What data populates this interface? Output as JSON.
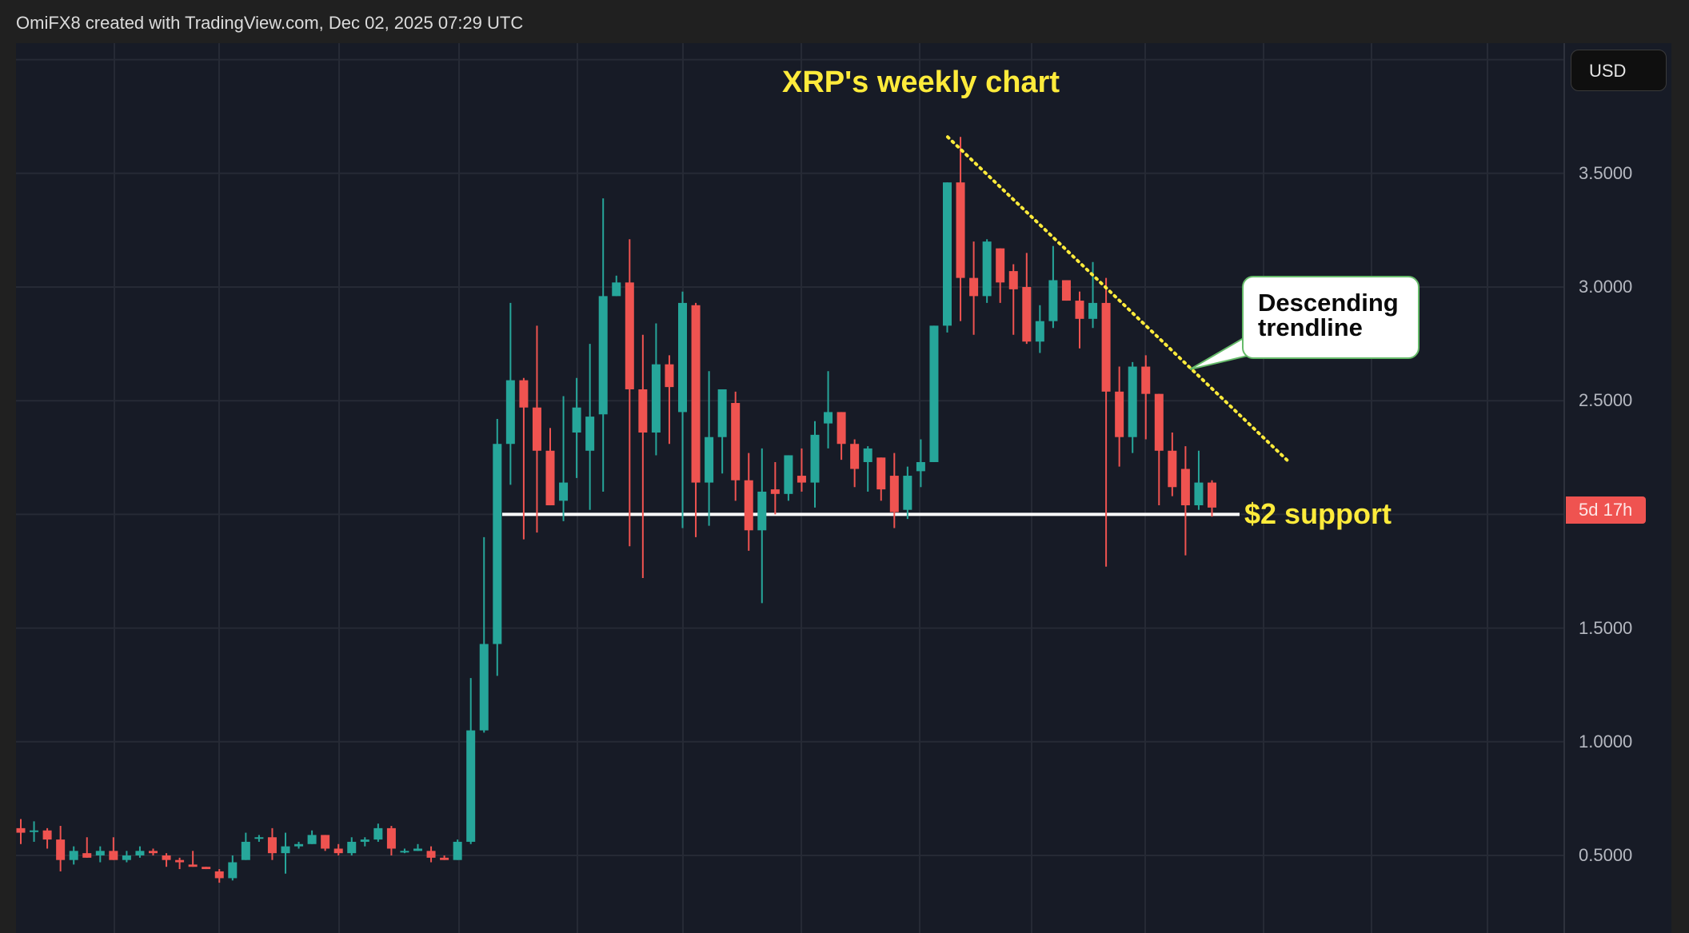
{
  "header": {
    "credit": "OmiFX8 created with TradingView.com, Dec 02, 2025 07:29 UTC"
  },
  "toolbar": {
    "currency_label": "USD"
  },
  "price_axis": {
    "ticks": [
      {
        "label": "3.5000",
        "value": 3.5
      },
      {
        "label": "3.0000",
        "value": 3.0
      },
      {
        "label": "2.5000",
        "value": 2.5
      },
      {
        "label": "1.5000",
        "value": 1.5
      },
      {
        "label": "1.0000",
        "value": 1.0
      },
      {
        "label": "0.5000",
        "value": 0.5
      }
    ],
    "countdown_label": "5d 17h"
  },
  "annotations": {
    "title": "XRP's weekly chart",
    "support_label": "$2 support",
    "trendline_label": "Descending trendline"
  },
  "colors": {
    "up": "#26a69a",
    "down": "#ef5350",
    "background": "#171b26",
    "grid": "#262a35",
    "annotation_yellow": "#ffeb3b",
    "bubble_border": "#66bb6a",
    "support_line": "#ffffff"
  },
  "chart_data": {
    "type": "candlestick",
    "title": "XRP's weekly chart",
    "xlabel": "",
    "ylabel": "USD",
    "ylim": [
      0.3,
      4.0
    ],
    "yticks": [
      0.5,
      1.0,
      1.5,
      2.0,
      2.5,
      3.0,
      3.5
    ],
    "grid": true,
    "interval": "1W",
    "support_level": 2.0,
    "trendline": {
      "style": "dotted",
      "color": "#ffeb3b",
      "from_price": 3.66,
      "to_price": 2.23
    },
    "candles": [
      {
        "o": 0.62,
        "h": 0.66,
        "l": 0.55,
        "c": 0.6
      },
      {
        "o": 0.61,
        "h": 0.65,
        "l": 0.56,
        "c": 0.61
      },
      {
        "o": 0.61,
        "h": 0.62,
        "l": 0.53,
        "c": 0.57
      },
      {
        "o": 0.57,
        "h": 0.63,
        "l": 0.43,
        "c": 0.48
      },
      {
        "o": 0.48,
        "h": 0.54,
        "l": 0.46,
        "c": 0.52
      },
      {
        "o": 0.51,
        "h": 0.58,
        "l": 0.5,
        "c": 0.49
      },
      {
        "o": 0.5,
        "h": 0.54,
        "l": 0.47,
        "c": 0.52
      },
      {
        "o": 0.52,
        "h": 0.58,
        "l": 0.48,
        "c": 0.48
      },
      {
        "o": 0.48,
        "h": 0.52,
        "l": 0.47,
        "c": 0.5
      },
      {
        "o": 0.5,
        "h": 0.54,
        "l": 0.49,
        "c": 0.52
      },
      {
        "o": 0.52,
        "h": 0.53,
        "l": 0.5,
        "c": 0.51
      },
      {
        "o": 0.5,
        "h": 0.51,
        "l": 0.45,
        "c": 0.48
      },
      {
        "o": 0.48,
        "h": 0.49,
        "l": 0.44,
        "c": 0.47
      },
      {
        "o": 0.46,
        "h": 0.52,
        "l": 0.45,
        "c": 0.45
      },
      {
        "o": 0.45,
        "h": 0.45,
        "l": 0.44,
        "c": 0.44
      },
      {
        "o": 0.43,
        "h": 0.44,
        "l": 0.38,
        "c": 0.4
      },
      {
        "o": 0.4,
        "h": 0.5,
        "l": 0.39,
        "c": 0.47
      },
      {
        "o": 0.48,
        "h": 0.6,
        "l": 0.48,
        "c": 0.56
      },
      {
        "o": 0.58,
        "h": 0.59,
        "l": 0.56,
        "c": 0.58
      },
      {
        "o": 0.58,
        "h": 0.62,
        "l": 0.48,
        "c": 0.51
      },
      {
        "o": 0.51,
        "h": 0.6,
        "l": 0.42,
        "c": 0.54
      },
      {
        "o": 0.54,
        "h": 0.56,
        "l": 0.53,
        "c": 0.55
      },
      {
        "o": 0.55,
        "h": 0.61,
        "l": 0.55,
        "c": 0.59
      },
      {
        "o": 0.59,
        "h": 0.59,
        "l": 0.52,
        "c": 0.53
      },
      {
        "o": 0.53,
        "h": 0.55,
        "l": 0.5,
        "c": 0.51
      },
      {
        "o": 0.51,
        "h": 0.58,
        "l": 0.5,
        "c": 0.56
      },
      {
        "o": 0.56,
        "h": 0.58,
        "l": 0.54,
        "c": 0.57
      },
      {
        "o": 0.57,
        "h": 0.64,
        "l": 0.56,
        "c": 0.62
      },
      {
        "o": 0.62,
        "h": 0.63,
        "l": 0.5,
        "c": 0.53
      },
      {
        "o": 0.52,
        "h": 0.53,
        "l": 0.51,
        "c": 0.52
      },
      {
        "o": 0.52,
        "h": 0.55,
        "l": 0.52,
        "c": 0.53
      },
      {
        "o": 0.52,
        "h": 0.54,
        "l": 0.47,
        "c": 0.49
      },
      {
        "o": 0.49,
        "h": 0.5,
        "l": 0.48,
        "c": 0.48
      },
      {
        "o": 0.48,
        "h": 0.57,
        "l": 0.48,
        "c": 0.56
      },
      {
        "o": 0.56,
        "h": 1.28,
        "l": 0.55,
        "c": 1.05
      },
      {
        "o": 1.05,
        "h": 1.9,
        "l": 1.04,
        "c": 1.43
      },
      {
        "o": 1.43,
        "h": 2.42,
        "l": 1.29,
        "c": 2.31
      },
      {
        "o": 2.31,
        "h": 2.93,
        "l": 2.13,
        "c": 2.59
      },
      {
        "o": 2.59,
        "h": 2.6,
        "l": 1.89,
        "c": 2.47
      },
      {
        "o": 2.47,
        "h": 2.83,
        "l": 1.92,
        "c": 2.28
      },
      {
        "o": 2.28,
        "h": 2.38,
        "l": 2.07,
        "c": 2.04
      },
      {
        "o": 2.06,
        "h": 2.52,
        "l": 1.97,
        "c": 2.14
      },
      {
        "o": 2.36,
        "h": 2.6,
        "l": 2.16,
        "c": 2.47
      },
      {
        "o": 2.28,
        "h": 2.75,
        "l": 2.02,
        "c": 2.43
      },
      {
        "o": 2.44,
        "h": 3.39,
        "l": 2.1,
        "c": 2.96
      },
      {
        "o": 2.96,
        "h": 3.05,
        "l": 2.98,
        "c": 3.02
      },
      {
        "o": 3.02,
        "h": 3.21,
        "l": 1.86,
        "c": 2.55
      },
      {
        "o": 2.55,
        "h": 2.79,
        "l": 1.72,
        "c": 2.36
      },
      {
        "o": 2.36,
        "h": 2.84,
        "l": 2.26,
        "c": 2.66
      },
      {
        "o": 2.66,
        "h": 2.7,
        "l": 2.31,
        "c": 2.56
      },
      {
        "o": 2.45,
        "h": 2.98,
        "l": 1.94,
        "c": 2.93
      },
      {
        "o": 2.92,
        "h": 2.93,
        "l": 1.9,
        "c": 2.14
      },
      {
        "o": 2.14,
        "h": 2.63,
        "l": 1.95,
        "c": 2.34
      },
      {
        "o": 2.34,
        "h": 2.53,
        "l": 2.18,
        "c": 2.55
      },
      {
        "o": 2.49,
        "h": 2.54,
        "l": 2.06,
        "c": 2.15
      },
      {
        "o": 2.15,
        "h": 2.27,
        "l": 1.84,
        "c": 1.93
      },
      {
        "o": 1.93,
        "h": 2.29,
        "l": 1.61,
        "c": 2.1
      },
      {
        "o": 2.11,
        "h": 2.23,
        "l": 2.0,
        "c": 2.09
      },
      {
        "o": 2.09,
        "h": 2.24,
        "l": 2.06,
        "c": 2.26
      },
      {
        "o": 2.17,
        "h": 2.29,
        "l": 2.1,
        "c": 2.14
      },
      {
        "o": 2.14,
        "h": 2.41,
        "l": 2.03,
        "c": 2.35
      },
      {
        "o": 2.4,
        "h": 2.63,
        "l": 2.29,
        "c": 2.45
      },
      {
        "o": 2.45,
        "h": 2.41,
        "l": 2.24,
        "c": 2.31
      },
      {
        "o": 2.31,
        "h": 2.33,
        "l": 2.12,
        "c": 2.2
      },
      {
        "o": 2.23,
        "h": 2.3,
        "l": 2.1,
        "c": 2.29
      },
      {
        "o": 2.25,
        "h": 2.25,
        "l": 2.06,
        "c": 2.11
      },
      {
        "o": 2.17,
        "h": 2.27,
        "l": 1.94,
        "c": 2.01
      },
      {
        "o": 2.02,
        "h": 2.21,
        "l": 1.98,
        "c": 2.17
      },
      {
        "o": 2.19,
        "h": 2.33,
        "l": 2.12,
        "c": 2.23
      },
      {
        "o": 2.23,
        "h": 2.51,
        "l": 2.24,
        "c": 2.83
      },
      {
        "o": 2.83,
        "h": 3.16,
        "l": 2.8,
        "c": 3.46
      },
      {
        "o": 3.46,
        "h": 3.66,
        "l": 2.85,
        "c": 3.04
      },
      {
        "o": 3.04,
        "h": 3.2,
        "l": 2.79,
        "c": 2.96
      },
      {
        "o": 2.96,
        "h": 3.21,
        "l": 2.93,
        "c": 3.2
      },
      {
        "o": 3.17,
        "h": 3.14,
        "l": 2.93,
        "c": 3.02
      },
      {
        "o": 3.07,
        "h": 3.1,
        "l": 2.79,
        "c": 2.99
      },
      {
        "o": 3.0,
        "h": 3.15,
        "l": 2.75,
        "c": 2.76
      },
      {
        "o": 2.76,
        "h": 2.92,
        "l": 2.71,
        "c": 2.85
      },
      {
        "o": 2.85,
        "h": 3.18,
        "l": 2.82,
        "c": 3.03
      },
      {
        "o": 3.03,
        "h": 3.0,
        "l": 2.97,
        "c": 2.94
      },
      {
        "o": 2.94,
        "h": 2.98,
        "l": 2.73,
        "c": 2.86
      },
      {
        "o": 2.86,
        "h": 3.11,
        "l": 2.82,
        "c": 2.93
      },
      {
        "o": 2.93,
        "h": 3.04,
        "l": 1.77,
        "c": 2.54
      },
      {
        "o": 2.54,
        "h": 2.65,
        "l": 2.21,
        "c": 2.34
      },
      {
        "o": 2.34,
        "h": 2.67,
        "l": 2.27,
        "c": 2.65
      },
      {
        "o": 2.65,
        "h": 2.7,
        "l": 2.33,
        "c": 2.53
      },
      {
        "o": 2.53,
        "h": 2.5,
        "l": 2.04,
        "c": 2.28
      },
      {
        "o": 2.28,
        "h": 2.36,
        "l": 2.08,
        "c": 2.12
      },
      {
        "o": 2.2,
        "h": 2.3,
        "l": 1.82,
        "c": 2.04
      },
      {
        "o": 2.04,
        "h": 2.28,
        "l": 2.02,
        "c": 2.14
      },
      {
        "o": 2.14,
        "h": 2.15,
        "l": 1.99,
        "c": 2.03
      }
    ]
  }
}
